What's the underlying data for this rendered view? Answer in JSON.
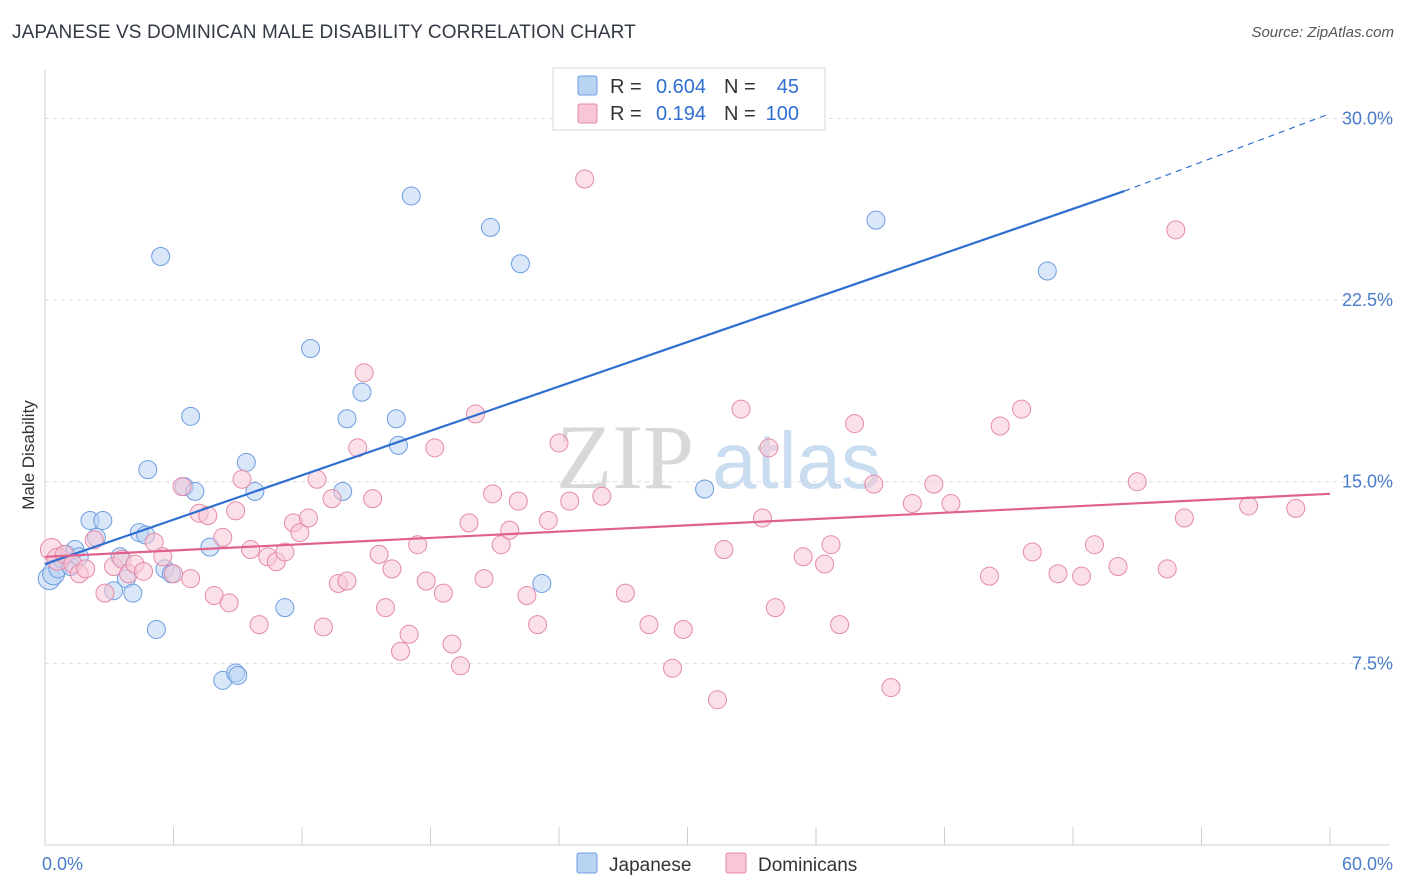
{
  "title": "JAPANESE VS DOMINICAN MALE DISABILITY CORRELATION CHART",
  "source": "Source: ZipAtlas.com",
  "watermark": {
    "part1": "ZIP",
    "part2": "atlas"
  },
  "legend_box": {
    "rows": [
      {
        "r_label": "R =",
        "r_value": "0.604",
        "n_label": "N =",
        "n_value": "45",
        "color": "#b9d3f3",
        "stroke": "#6d9de0"
      },
      {
        "r_label": "R =",
        "r_value": "0.194",
        "n_label": "N =",
        "n_value": "100",
        "color": "#f8c6d5",
        "stroke": "#e58aa8"
      }
    ]
  },
  "bottom_legend": [
    {
      "label": "Japanese",
      "color": "#b9d3f3",
      "stroke": "#6d9de0"
    },
    {
      "label": "Dominicans",
      "color": "#f8c6d5",
      "stroke": "#e58aa8"
    }
  ],
  "chart_data": {
    "type": "scatter",
    "xlabel": "",
    "ylabel": "Male Disability",
    "xlim": [
      0,
      60
    ],
    "ylim": [
      0,
      32
    ],
    "x_tick_labels": [
      {
        "value": 0,
        "label": "0.0%"
      },
      {
        "value": 60,
        "label": "60.0%"
      }
    ],
    "y_tick_labels": [
      {
        "value": 7.5,
        "label": "7.5%"
      },
      {
        "value": 15,
        "label": "15.0%"
      },
      {
        "value": 22.5,
        "label": "22.5%"
      },
      {
        "value": 30,
        "label": "30.0%"
      }
    ],
    "grid": "horizontal dashed",
    "series": [
      {
        "name": "Japanese",
        "color": "#6d9de0",
        "fill": "#b9d3f3",
        "trend": {
          "x": [
            0,
            50.4
          ],
          "y": [
            11.6,
            27.0
          ],
          "dashed_extension_to": [
            60,
            30.2
          ],
          "color": "#2f6fd1"
        },
        "points": [
          [
            0.2,
            11.0
          ],
          [
            0.4,
            11.2
          ],
          [
            0.6,
            11.4
          ],
          [
            0.8,
            11.8
          ],
          [
            1.0,
            12.0
          ],
          [
            1.2,
            11.5
          ],
          [
            1.4,
            12.2
          ],
          [
            1.6,
            11.9
          ],
          [
            2.1,
            13.4
          ],
          [
            2.4,
            12.7
          ],
          [
            2.7,
            13.4
          ],
          [
            3.2,
            10.5
          ],
          [
            3.5,
            11.9
          ],
          [
            3.8,
            11.0
          ],
          [
            4.1,
            10.4
          ],
          [
            4.4,
            12.9
          ],
          [
            4.7,
            12.8
          ],
          [
            4.8,
            15.5
          ],
          [
            5.2,
            8.9
          ],
          [
            5.4,
            24.3
          ],
          [
            5.6,
            11.4
          ],
          [
            5.9,
            11.2
          ],
          [
            6.5,
            14.8
          ],
          [
            6.8,
            17.7
          ],
          [
            7.0,
            14.6
          ],
          [
            7.7,
            12.3
          ],
          [
            8.3,
            6.8
          ],
          [
            8.9,
            7.1
          ],
          [
            9.0,
            7.0
          ],
          [
            9.4,
            15.8
          ],
          [
            9.8,
            14.6
          ],
          [
            11.2,
            9.8
          ],
          [
            12.4,
            20.5
          ],
          [
            13.9,
            14.6
          ],
          [
            14.1,
            17.6
          ],
          [
            14.8,
            18.7
          ],
          [
            16.4,
            17.6
          ],
          [
            16.5,
            16.5
          ],
          [
            17.1,
            26.8
          ],
          [
            20.8,
            25.5
          ],
          [
            22.2,
            24.0
          ],
          [
            23.2,
            10.8
          ],
          [
            30.8,
            14.7
          ],
          [
            38.8,
            25.8
          ],
          [
            46.8,
            23.7
          ]
        ]
      },
      {
        "name": "Dominicans",
        "color": "#e58aa8",
        "fill": "#f8c6d5",
        "trend": {
          "x": [
            0,
            60
          ],
          "y": [
            11.9,
            14.5
          ],
          "color": "#e0628c"
        },
        "points": [
          [
            0.3,
            12.2
          ],
          [
            0.6,
            11.8
          ],
          [
            0.9,
            12.0
          ],
          [
            1.3,
            11.6
          ],
          [
            1.6,
            11.2
          ],
          [
            1.9,
            11.4
          ],
          [
            2.3,
            12.6
          ],
          [
            2.8,
            10.4
          ],
          [
            3.2,
            11.5
          ],
          [
            3.6,
            11.8
          ],
          [
            3.9,
            11.2
          ],
          [
            4.2,
            11.6
          ],
          [
            4.6,
            11.3
          ],
          [
            5.1,
            12.5
          ],
          [
            5.5,
            11.9
          ],
          [
            6.0,
            11.2
          ],
          [
            6.4,
            14.8
          ],
          [
            6.8,
            11.0
          ],
          [
            7.2,
            13.7
          ],
          [
            7.6,
            13.6
          ],
          [
            7.9,
            10.3
          ],
          [
            8.3,
            12.7
          ],
          [
            8.6,
            10.0
          ],
          [
            8.9,
            13.8
          ],
          [
            9.2,
            15.1
          ],
          [
            9.6,
            12.2
          ],
          [
            10.0,
            9.1
          ],
          [
            10.4,
            11.9
          ],
          [
            10.8,
            11.7
          ],
          [
            11.2,
            12.1
          ],
          [
            11.6,
            13.3
          ],
          [
            11.9,
            12.9
          ],
          [
            12.3,
            13.5
          ],
          [
            12.7,
            15.1
          ],
          [
            13.0,
            9.0
          ],
          [
            13.4,
            14.3
          ],
          [
            13.7,
            10.8
          ],
          [
            14.1,
            10.9
          ],
          [
            14.6,
            16.4
          ],
          [
            14.9,
            19.5
          ],
          [
            15.3,
            14.3
          ],
          [
            15.6,
            12.0
          ],
          [
            15.9,
            9.8
          ],
          [
            16.2,
            11.4
          ],
          [
            16.6,
            8.0
          ],
          [
            17.0,
            8.7
          ],
          [
            17.4,
            12.4
          ],
          [
            17.8,
            10.9
          ],
          [
            18.2,
            16.4
          ],
          [
            18.6,
            10.4
          ],
          [
            19.0,
            8.3
          ],
          [
            19.4,
            7.4
          ],
          [
            19.8,
            13.3
          ],
          [
            20.1,
            17.8
          ],
          [
            20.5,
            11.0
          ],
          [
            20.9,
            14.5
          ],
          [
            21.3,
            12.4
          ],
          [
            21.7,
            13.0
          ],
          [
            22.1,
            14.2
          ],
          [
            22.5,
            10.3
          ],
          [
            23.0,
            9.1
          ],
          [
            23.5,
            13.4
          ],
          [
            24.0,
            16.6
          ],
          [
            24.5,
            14.2
          ],
          [
            25.2,
            27.5
          ],
          [
            26.0,
            14.4
          ],
          [
            27.1,
            10.4
          ],
          [
            28.2,
            9.1
          ],
          [
            29.3,
            7.3
          ],
          [
            29.8,
            8.9
          ],
          [
            31.4,
            6.0
          ],
          [
            31.7,
            12.2
          ],
          [
            32.5,
            18.0
          ],
          [
            33.5,
            13.5
          ],
          [
            33.8,
            16.4
          ],
          [
            34.1,
            9.8
          ],
          [
            35.4,
            11.9
          ],
          [
            36.4,
            11.6
          ],
          [
            36.7,
            12.4
          ],
          [
            37.1,
            9.1
          ],
          [
            37.8,
            17.4
          ],
          [
            38.7,
            14.9
          ],
          [
            39.5,
            6.5
          ],
          [
            40.5,
            14.1
          ],
          [
            41.5,
            14.9
          ],
          [
            42.3,
            14.1
          ],
          [
            44.1,
            11.1
          ],
          [
            44.6,
            17.3
          ],
          [
            45.6,
            18.0
          ],
          [
            46.1,
            12.1
          ],
          [
            47.3,
            11.2
          ],
          [
            48.4,
            11.1
          ],
          [
            49.0,
            12.4
          ],
          [
            50.1,
            11.5
          ],
          [
            51.0,
            15.0
          ],
          [
            52.4,
            11.4
          ],
          [
            52.8,
            25.4
          ],
          [
            53.2,
            13.5
          ],
          [
            56.2,
            14.0
          ],
          [
            58.4,
            13.9
          ]
        ]
      }
    ]
  }
}
